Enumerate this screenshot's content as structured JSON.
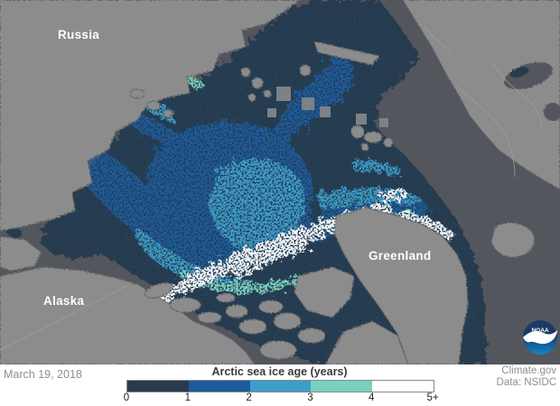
{
  "map": {
    "labels": {
      "russia": "Russia",
      "alaska": "Alaska",
      "greenland": "Greenland"
    },
    "colors": {
      "land": "#8c8c8c",
      "coast": "#63666b",
      "ocean": "#53565c",
      "nodata": "#7e8186",
      "ice0": "#283a4e",
      "ice1": "#1e5b9e",
      "ice2": "#3e9cc8",
      "ice3": "#7bd0c0",
      "ice4": "#ffffff",
      "landborder": "#9e9e9e"
    },
    "logo": {
      "text": "NOAA",
      "circle_top": "#1b3a66",
      "circle_bottom": "#1286cc"
    }
  },
  "footer": {
    "date": "March 19, 2018",
    "legend": {
      "title": "Arctic sea ice age (years)",
      "ticks": [
        "0",
        "1",
        "2",
        "3",
        "4",
        "5+"
      ],
      "segments": [
        {
          "label": "0-1",
          "color": "#283a4e"
        },
        {
          "label": "1-2",
          "color": "#1e5b9e"
        },
        {
          "label": "2-3",
          "color": "#3e9cc8"
        },
        {
          "label": "3-4",
          "color": "#7bd0c0"
        },
        {
          "label": "4-5+",
          "color": "#ffffff"
        }
      ]
    },
    "credit_source": "Climate.gov",
    "credit_data": "Data: NSIDC"
  }
}
